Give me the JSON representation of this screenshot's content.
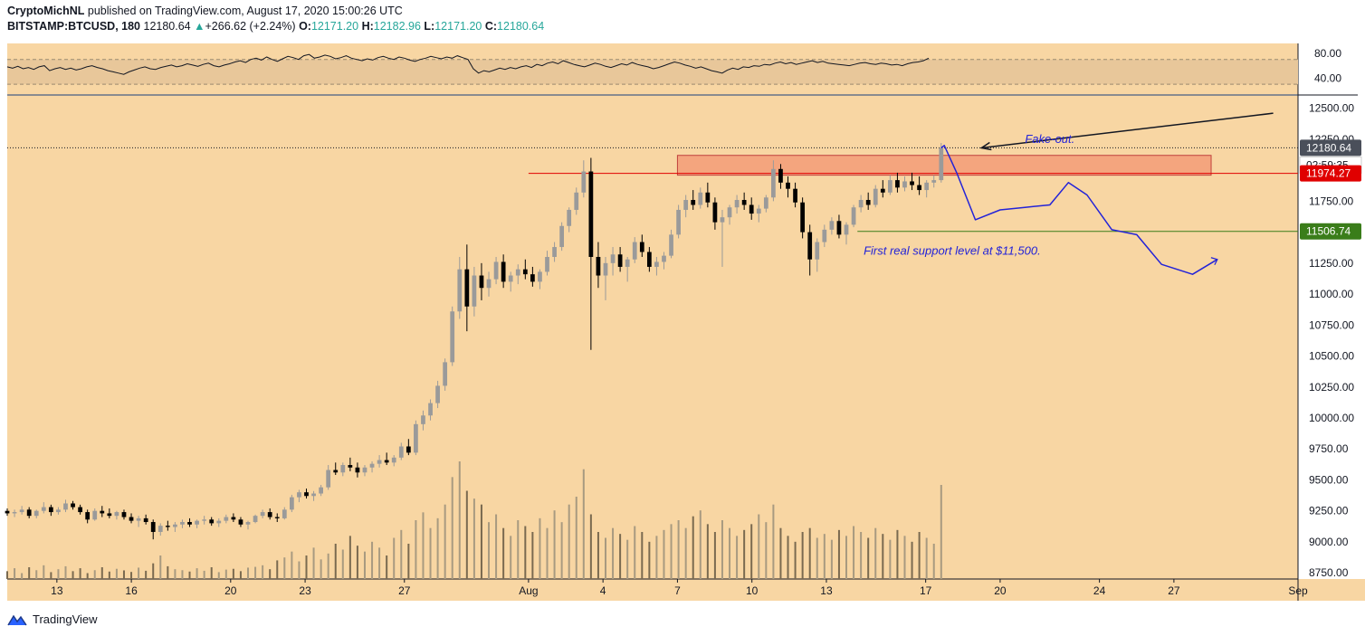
{
  "header": {
    "author": "CryptoMichNL",
    "published_text": "published on TradingView.com, August 17, 2020 15:00:26 UTC",
    "symbol": "BITSTAMP:BTCUSD, 180",
    "last": "12180.64",
    "change": "+266.62 (+2.24%)",
    "open_label": "O:",
    "open": "12171.20",
    "high_label": "H:",
    "high": "12182.96",
    "low_label": "L:",
    "low": "12171.20",
    "close_label": "C:",
    "close": "12180.64"
  },
  "footer": {
    "brand": "TradingView"
  },
  "colors": {
    "background": "#f8d6a3",
    "rsi_band": "#e8c79a",
    "resistance_box": "#f4a07a",
    "resistance_line": "#e00000",
    "support_line": "#3a7d1a",
    "projection": "#2323d8",
    "candle_up": "#9a9a9a",
    "candle_down": "#000000",
    "price_tag_dark": "#4a4f5a",
    "price_tag_red": "#e00000",
    "price_tag_green": "#3a7d1a"
  },
  "chart_data": {
    "type": "candlestick",
    "title": "BITSTAMP:BTCUSD, 180",
    "y_ticks": [
      8750,
      9000,
      9250,
      9500,
      9750,
      10000,
      10250,
      10500,
      10750,
      11000,
      11250,
      11500,
      11750,
      12000,
      12250,
      12500
    ],
    "y_range": [
      8700,
      12600
    ],
    "x_ticks": [
      "13",
      "16",
      "20",
      "23",
      "27",
      "Aug",
      "4",
      "7",
      "10",
      "13",
      "17",
      "20",
      "24",
      "27",
      "Sep"
    ],
    "x_range": [
      "2020-07-11",
      "2020-09-01"
    ],
    "rsi": {
      "ticks": [
        "80.00",
        "40.00"
      ],
      "band": [
        30,
        70
      ],
      "series": [
        58,
        56,
        59,
        55,
        57,
        54,
        58,
        60,
        52,
        55,
        57,
        54,
        56,
        53,
        55,
        58,
        60,
        57,
        55,
        52,
        50,
        48,
        46,
        50,
        53,
        56,
        58,
        55,
        54,
        57,
        59,
        61,
        58,
        60,
        63,
        61,
        59,
        62,
        64,
        60,
        58,
        61,
        63,
        66,
        68,
        65,
        70,
        72,
        69,
        74,
        70,
        67,
        71,
        75,
        73,
        70,
        76,
        78,
        72,
        74,
        77,
        75,
        71,
        73,
        76,
        72,
        70,
        68,
        71,
        69,
        73,
        75,
        72,
        70,
        74,
        72,
        69,
        67,
        70,
        72,
        75,
        73,
        71,
        74,
        72,
        76,
        73,
        70,
        55,
        48,
        52,
        50,
        53,
        56,
        54,
        57,
        55,
        58,
        60,
        57,
        62,
        60,
        64,
        66,
        63,
        68,
        65,
        62,
        60,
        58,
        61,
        64,
        62,
        59,
        57,
        60,
        63,
        61,
        65,
        62,
        60,
        58,
        55,
        57,
        60,
        63,
        66,
        64,
        61,
        59,
        56,
        58,
        55,
        52,
        50,
        48,
        53,
        56,
        54,
        58,
        57,
        60,
        59,
        62,
        61,
        64,
        66,
        63,
        65,
        62,
        64,
        66,
        68,
        65,
        67,
        64,
        63,
        62,
        61,
        60,
        62,
        64,
        65,
        63,
        62,
        64,
        63,
        61,
        62,
        60,
        63,
        65,
        66,
        68,
        72
      ],
      "last": 72
    },
    "price": {
      "last": "12180.64",
      "countdown": "02:59:35",
      "resistance": "11974.27",
      "support": "11506.74"
    },
    "annotations": {
      "fakeout": "Fake-out.",
      "support_text": "First real support level at $11,500."
    },
    "candles": [
      [
        9250,
        9270,
        9210,
        9230
      ],
      [
        9230,
        9260,
        9200,
        9240
      ],
      [
        9240,
        9290,
        9220,
        9260
      ],
      [
        9260,
        9280,
        9190,
        9210
      ],
      [
        9210,
        9260,
        9190,
        9250
      ],
      [
        9250,
        9320,
        9230,
        9280
      ],
      [
        9280,
        9300,
        9210,
        9240
      ],
      [
        9240,
        9280,
        9220,
        9260
      ],
      [
        9260,
        9340,
        9240,
        9310
      ],
      [
        9310,
        9330,
        9260,
        9280
      ],
      [
        9280,
        9300,
        9220,
        9240
      ],
      [
        9240,
        9260,
        9150,
        9180
      ],
      [
        9180,
        9270,
        9170,
        9250
      ],
      [
        9250,
        9290,
        9200,
        9230
      ],
      [
        9230,
        9270,
        9190,
        9210
      ],
      [
        9210,
        9250,
        9180,
        9240
      ],
      [
        9240,
        9260,
        9180,
        9200
      ],
      [
        9200,
        9230,
        9150,
        9170
      ],
      [
        9170,
        9210,
        9120,
        9190
      ],
      [
        9190,
        9220,
        9140,
        9160
      ],
      [
        9160,
        9180,
        9020,
        9080
      ],
      [
        9080,
        9150,
        9050,
        9130
      ],
      [
        9130,
        9170,
        9090,
        9120
      ],
      [
        9120,
        9160,
        9080,
        9140
      ],
      [
        9140,
        9180,
        9110,
        9160
      ],
      [
        9160,
        9190,
        9120,
        9140
      ],
      [
        9140,
        9180,
        9110,
        9170
      ],
      [
        9170,
        9210,
        9140,
        9180
      ],
      [
        9180,
        9200,
        9130,
        9150
      ],
      [
        9150,
        9190,
        9120,
        9170
      ],
      [
        9170,
        9220,
        9150,
        9200
      ],
      [
        9200,
        9230,
        9160,
        9180
      ],
      [
        9180,
        9200,
        9120,
        9140
      ],
      [
        9140,
        9170,
        9100,
        9160
      ],
      [
        9160,
        9220,
        9150,
        9210
      ],
      [
        9210,
        9260,
        9190,
        9240
      ],
      [
        9240,
        9270,
        9180,
        9200
      ],
      [
        9200,
        9230,
        9160,
        9190
      ],
      [
        9190,
        9280,
        9180,
        9260
      ],
      [
        9260,
        9380,
        9240,
        9360
      ],
      [
        9360,
        9420,
        9320,
        9400
      ],
      [
        9400,
        9430,
        9350,
        9370
      ],
      [
        9370,
        9410,
        9330,
        9390
      ],
      [
        9390,
        9460,
        9370,
        9440
      ],
      [
        9440,
        9620,
        9420,
        9580
      ],
      [
        9580,
        9640,
        9540,
        9560
      ],
      [
        9560,
        9640,
        9530,
        9620
      ],
      [
        9620,
        9680,
        9570,
        9600
      ],
      [
        9600,
        9640,
        9520,
        9560
      ],
      [
        9560,
        9620,
        9530,
        9600
      ],
      [
        9600,
        9650,
        9560,
        9630
      ],
      [
        9630,
        9700,
        9600,
        9660
      ],
      [
        9660,
        9720,
        9620,
        9640
      ],
      [
        9640,
        9700,
        9610,
        9680
      ],
      [
        9680,
        9800,
        9660,
        9770
      ],
      [
        9770,
        9830,
        9700,
        9720
      ],
      [
        9720,
        9980,
        9700,
        9950
      ],
      [
        9950,
        10060,
        9900,
        10020
      ],
      [
        10020,
        10150,
        9980,
        10120
      ],
      [
        10120,
        10300,
        10080,
        10260
      ],
      [
        10260,
        10480,
        10220,
        10450
      ],
      [
        10450,
        10900,
        10420,
        10860
      ],
      [
        10860,
        11300,
        10800,
        11200
      ],
      [
        11200,
        11400,
        10700,
        10900
      ],
      [
        10900,
        11220,
        10820,
        11150
      ],
      [
        11150,
        11250,
        10950,
        11050
      ],
      [
        11050,
        11180,
        10980,
        11120
      ],
      [
        11120,
        11300,
        11080,
        11260
      ],
      [
        11260,
        11320,
        11050,
        11100
      ],
      [
        11100,
        11180,
        11020,
        11150
      ],
      [
        11150,
        11240,
        11080,
        11200
      ],
      [
        11200,
        11280,
        11120,
        11160
      ],
      [
        11160,
        11220,
        11060,
        11100
      ],
      [
        11100,
        11200,
        11040,
        11180
      ],
      [
        11180,
        11350,
        11150,
        11300
      ],
      [
        11300,
        11420,
        11260,
        11380
      ],
      [
        11380,
        11580,
        11350,
        11550
      ],
      [
        11550,
        11700,
        11500,
        11680
      ],
      [
        11680,
        11860,
        11640,
        11820
      ],
      [
        11820,
        12080,
        11780,
        11990
      ],
      [
        11990,
        12100,
        10550,
        11300
      ],
      [
        11300,
        11420,
        11050,
        11150
      ],
      [
        11150,
        11300,
        10950,
        11250
      ],
      [
        11250,
        11380,
        11150,
        11320
      ],
      [
        11320,
        11380,
        11180,
        11220
      ],
      [
        11220,
        11300,
        11100,
        11280
      ],
      [
        11280,
        11460,
        11250,
        11420
      ],
      [
        11420,
        11480,
        11300,
        11340
      ],
      [
        11340,
        11380,
        11180,
        11220
      ],
      [
        11220,
        11300,
        11150,
        11260
      ],
      [
        11260,
        11340,
        11200,
        11310
      ],
      [
        11310,
        11520,
        11290,
        11480
      ],
      [
        11480,
        11720,
        11450,
        11680
      ],
      [
        11680,
        11800,
        11620,
        11760
      ],
      [
        11760,
        11840,
        11680,
        11720
      ],
      [
        11720,
        11860,
        11690,
        11820
      ],
      [
        11820,
        11900,
        11700,
        11740
      ],
      [
        11740,
        11780,
        11520,
        11580
      ],
      [
        11580,
        11680,
        11220,
        11620
      ],
      [
        11620,
        11720,
        11560,
        11700
      ],
      [
        11700,
        11800,
        11650,
        11760
      ],
      [
        11760,
        11820,
        11680,
        11720
      ],
      [
        11720,
        11780,
        11600,
        11650
      ],
      [
        11650,
        11720,
        11580,
        11690
      ],
      [
        11690,
        11800,
        11660,
        11780
      ],
      [
        11780,
        12080,
        11750,
        12010
      ],
      [
        12010,
        12050,
        11850,
        11900
      ],
      [
        11900,
        11950,
        11780,
        11850
      ],
      [
        11850,
        11900,
        11700,
        11740
      ],
      [
        11740,
        11780,
        11450,
        11500
      ],
      [
        11500,
        11560,
        11150,
        11280
      ],
      [
        11280,
        11450,
        11180,
        11420
      ],
      [
        11420,
        11560,
        11380,
        11520
      ],
      [
        11520,
        11620,
        11480,
        11590
      ],
      [
        11590,
        11640,
        11450,
        11480
      ],
      [
        11480,
        11580,
        11400,
        11560
      ],
      [
        11560,
        11720,
        11540,
        11700
      ],
      [
        11700,
        11800,
        11660,
        11760
      ],
      [
        11760,
        11820,
        11680,
        11720
      ],
      [
        11720,
        11880,
        11700,
        11850
      ],
      [
        11850,
        11920,
        11780,
        11820
      ],
      [
        11820,
        11960,
        11800,
        11920
      ],
      [
        11920,
        11980,
        11820,
        11860
      ],
      [
        11860,
        11950,
        11830,
        11910
      ],
      [
        11910,
        11980,
        11840,
        11880
      ],
      [
        11880,
        11950,
        11800,
        11840
      ],
      [
        11840,
        11920,
        11780,
        11900
      ],
      [
        11900,
        11960,
        11860,
        11920
      ],
      [
        11920,
        12220,
        11900,
        12180
      ]
    ],
    "volumes": [
      40,
      55,
      30,
      60,
      45,
      70,
      35,
      50,
      65,
      40,
      55,
      30,
      45,
      60,
      38,
      52,
      44,
      36,
      58,
      42,
      80,
      120,
      65,
      50,
      45,
      38,
      55,
      42,
      60,
      35,
      48,
      52,
      40,
      58,
      62,
      70,
      50,
      95,
      110,
      140,
      90,
      120,
      160,
      100,
      130,
      180,
      150,
      220,
      170,
      140,
      190,
      160,
      120,
      210,
      250,
      180,
      300,
      340,
      260,
      310,
      380,
      520,
      600,
      450,
      410,
      380,
      290,
      330,
      260,
      220,
      300,
      270,
      240,
      310,
      260,
      350,
      290,
      380,
      420,
      560,
      330,
      240,
      210,
      260,
      230,
      200,
      270,
      240,
      190,
      220,
      250,
      280,
      300,
      260,
      320,
      350,
      280,
      240,
      300,
      260,
      220,
      250,
      280,
      330,
      290,
      380,
      260,
      220,
      190,
      240,
      260,
      210,
      230,
      200,
      250,
      220,
      270,
      240,
      210,
      260,
      230,
      200,
      250,
      220,
      190,
      240,
      210,
      180,
      480
    ]
  }
}
